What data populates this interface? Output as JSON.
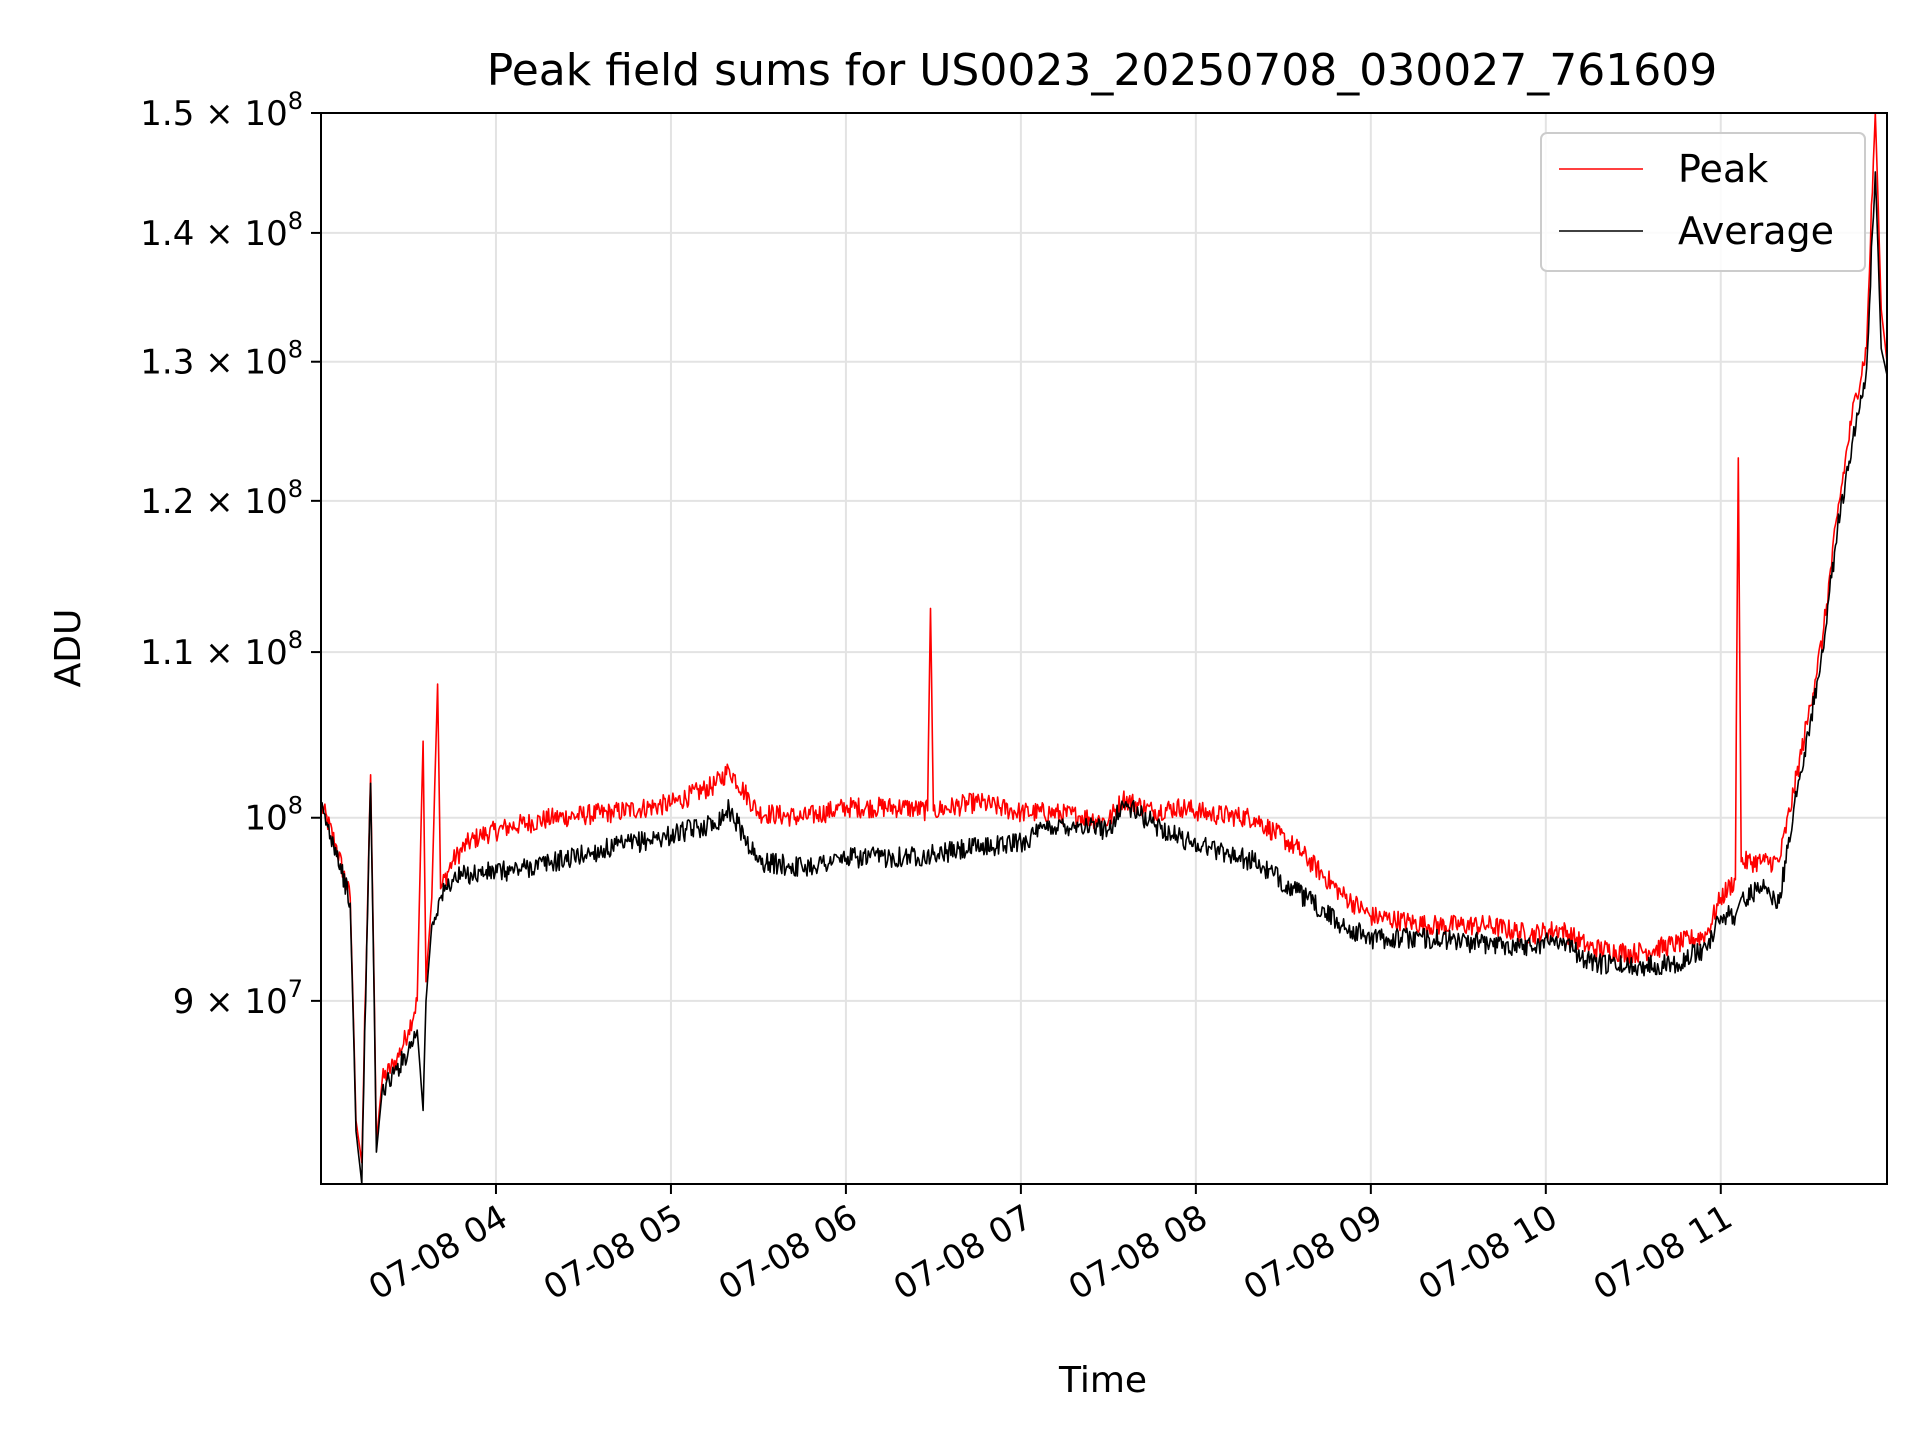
{
  "chart_data": {
    "type": "line",
    "title": "Peak field sums for US0023_20250708_030027_761609",
    "xlabel": "Time",
    "ylabel": "ADU",
    "yscale": "log",
    "ylim": [
      81000000,
      150000000
    ],
    "xlim": [
      "07-08 03:00",
      "07-08 11:57"
    ],
    "grid": true,
    "legend_position": "top-right",
    "x_ticks": [
      "07-08 04",
      "07-08 05",
      "07-08 06",
      "07-08 07",
      "07-08 08",
      "07-08 09",
      "07-08 10",
      "07-08 11"
    ],
    "y_ticks": [
      {
        "value": 90000000,
        "mantissa": "9",
        "exponent": "7"
      },
      {
        "value": 100000000,
        "mantissa": "",
        "exponent": "8"
      },
      {
        "value": 110000000,
        "mantissa": "1.1",
        "exponent": "8"
      },
      {
        "value": 120000000,
        "mantissa": "1.2",
        "exponent": "8"
      },
      {
        "value": 130000000,
        "mantissa": "1.3",
        "exponent": "8"
      },
      {
        "value": 140000000,
        "mantissa": "1.4",
        "exponent": "8"
      },
      {
        "value": 150000000,
        "mantissa": "1.5",
        "exponent": "8"
      }
    ],
    "series": [
      {
        "name": "Peak",
        "color": "#ff0000",
        "points": [
          [
            "07-08 03:00",
            100800000
          ],
          [
            "07-08 03:05",
            98500000
          ],
          [
            "07-08 03:10",
            95500000
          ],
          [
            "07-08 03:12",
            84000000
          ],
          [
            "07-08 03:14",
            82000000
          ],
          [
            "07-08 03:17",
            102500000
          ],
          [
            "07-08 03:19",
            83000000
          ],
          [
            "07-08 03:21",
            86000000
          ],
          [
            "07-08 03:26",
            87000000
          ],
          [
            "07-08 03:30",
            88500000
          ],
          [
            "07-08 03:33",
            90000000
          ],
          [
            "07-08 03:35",
            104500000
          ],
          [
            "07-08 03:36",
            91000000
          ],
          [
            "07-08 03:38",
            95500000
          ],
          [
            "07-08 03:40",
            108000000
          ],
          [
            "07-08 03:41",
            96000000
          ],
          [
            "07-08 03:45",
            97500000
          ],
          [
            "07-08 03:50",
            98500000
          ],
          [
            "07-08 03:55",
            99000000
          ],
          [
            "07-08 04:05",
            99500000
          ],
          [
            "07-08 04:20",
            100000000
          ],
          [
            "07-08 04:40",
            100300000
          ],
          [
            "07-08 05:00",
            100800000
          ],
          [
            "07-08 05:15",
            101900000
          ],
          [
            "07-08 05:20",
            102800000
          ],
          [
            "07-08 05:30",
            100300000
          ],
          [
            "07-08 05:45",
            100000000
          ],
          [
            "07-08 06:00",
            100600000
          ],
          [
            "07-08 06:20",
            100600000
          ],
          [
            "07-08 06:28",
            100400000
          ],
          [
            "07-08 06:29",
            112800000
          ],
          [
            "07-08 06:30",
            100400000
          ],
          [
            "07-08 06:45",
            100900000
          ],
          [
            "07-08 07:00",
            100300000
          ],
          [
            "07-08 07:10",
            100300000
          ],
          [
            "07-08 07:20",
            100100000
          ],
          [
            "07-08 07:30",
            99800000
          ],
          [
            "07-08 07:35",
            101100000
          ],
          [
            "07-08 07:45",
            100400000
          ],
          [
            "07-08 07:55",
            100600000
          ],
          [
            "07-08 08:05",
            100200000
          ],
          [
            "07-08 08:20",
            100000000
          ],
          [
            "07-08 08:35",
            98200000
          ],
          [
            "07-08 08:50",
            95700000
          ],
          [
            "07-08 09:00",
            94500000
          ],
          [
            "07-08 09:20",
            94000000
          ],
          [
            "07-08 09:40",
            94000000
          ],
          [
            "07-08 09:55",
            93500000
          ],
          [
            "07-08 10:05",
            93800000
          ],
          [
            "07-08 10:15",
            92800000
          ],
          [
            "07-08 10:30",
            92500000
          ],
          [
            "07-08 10:45",
            93000000
          ],
          [
            "07-08 10:55",
            93500000
          ],
          [
            "07-08 11:00",
            95500000
          ],
          [
            "07-08 11:05",
            96500000
          ],
          [
            "07-08 11:06",
            123000000
          ],
          [
            "07-08 11:07",
            97500000
          ],
          [
            "07-08 11:15",
            97500000
          ],
          [
            "07-08 11:20",
            97500000
          ],
          [
            "07-08 11:25",
            101500000
          ],
          [
            "07-08 11:30",
            106000000
          ],
          [
            "07-08 11:35",
            111000000
          ],
          [
            "07-08 11:40",
            119000000
          ],
          [
            "07-08 11:45",
            126000000
          ],
          [
            "07-08 11:50",
            131000000
          ],
          [
            "07-08 11:53",
            150000000
          ],
          [
            "07-08 11:55",
            134000000
          ],
          [
            "07-08 11:57",
            130000000
          ]
        ]
      },
      {
        "name": "Average",
        "color": "#000000",
        "points": [
          [
            "07-08 03:00",
            100500000
          ],
          [
            "07-08 03:05",
            98300000
          ],
          [
            "07-08 03:10",
            95200000
          ],
          [
            "07-08 03:12",
            83500000
          ],
          [
            "07-08 03:14",
            81000000
          ],
          [
            "07-08 03:17",
            102000000
          ],
          [
            "07-08 03:19",
            82500000
          ],
          [
            "07-08 03:21",
            85500000
          ],
          [
            "07-08 03:26",
            86500000
          ],
          [
            "07-08 03:30",
            87500000
          ],
          [
            "07-08 03:33",
            88500000
          ],
          [
            "07-08 03:35",
            84500000
          ],
          [
            "07-08 03:36",
            90000000
          ],
          [
            "07-08 03:38",
            94000000
          ],
          [
            "07-08 03:41",
            95500000
          ],
          [
            "07-08 03:45",
            96500000
          ],
          [
            "07-08 03:50",
            96800000
          ],
          [
            "07-08 04:05",
            97000000
          ],
          [
            "07-08 04:20",
            97500000
          ],
          [
            "07-08 04:40",
            98300000
          ],
          [
            "07-08 05:00",
            99000000
          ],
          [
            "07-08 05:15",
            99700000
          ],
          [
            "07-08 05:20",
            100500000
          ],
          [
            "07-08 05:30",
            97500000
          ],
          [
            "07-08 05:45",
            97200000
          ],
          [
            "07-08 06:00",
            97700000
          ],
          [
            "07-08 06:20",
            97800000
          ],
          [
            "07-08 06:30",
            97900000
          ],
          [
            "07-08 06:45",
            98300000
          ],
          [
            "07-08 07:00",
            98600000
          ],
          [
            "07-08 07:10",
            99500000
          ],
          [
            "07-08 07:20",
            99600000
          ],
          [
            "07-08 07:30",
            99300000
          ],
          [
            "07-08 07:35",
            100800000
          ],
          [
            "07-08 07:45",
            99700000
          ],
          [
            "07-08 07:55",
            98800000
          ],
          [
            "07-08 08:05",
            98300000
          ],
          [
            "07-08 08:20",
            97500000
          ],
          [
            "07-08 08:35",
            95800000
          ],
          [
            "07-08 08:50",
            94000000
          ],
          [
            "07-08 09:00",
            93300000
          ],
          [
            "07-08 09:20",
            93300000
          ],
          [
            "07-08 09:40",
            93000000
          ],
          [
            "07-08 09:55",
            92900000
          ],
          [
            "07-08 10:05",
            93300000
          ],
          [
            "07-08 10:15",
            92000000
          ],
          [
            "07-08 10:30",
            91800000
          ],
          [
            "07-08 10:45",
            92000000
          ],
          [
            "07-08 10:55",
            92800000
          ],
          [
            "07-08 11:00",
            94500000
          ],
          [
            "07-08 11:05",
            94500000
          ],
          [
            "07-08 11:07",
            95500000
          ],
          [
            "07-08 11:15",
            96000000
          ],
          [
            "07-08 11:20",
            95200000
          ],
          [
            "07-08 11:25",
            100500000
          ],
          [
            "07-08 11:30",
            105000000
          ],
          [
            "07-08 11:35",
            110000000
          ],
          [
            "07-08 11:40",
            118000000
          ],
          [
            "07-08 11:45",
            124000000
          ],
          [
            "07-08 11:50",
            129500000
          ],
          [
            "07-08 11:53",
            145000000
          ],
          [
            "07-08 11:55",
            131000000
          ],
          [
            "07-08 11:57",
            129000000
          ]
        ]
      }
    ]
  }
}
